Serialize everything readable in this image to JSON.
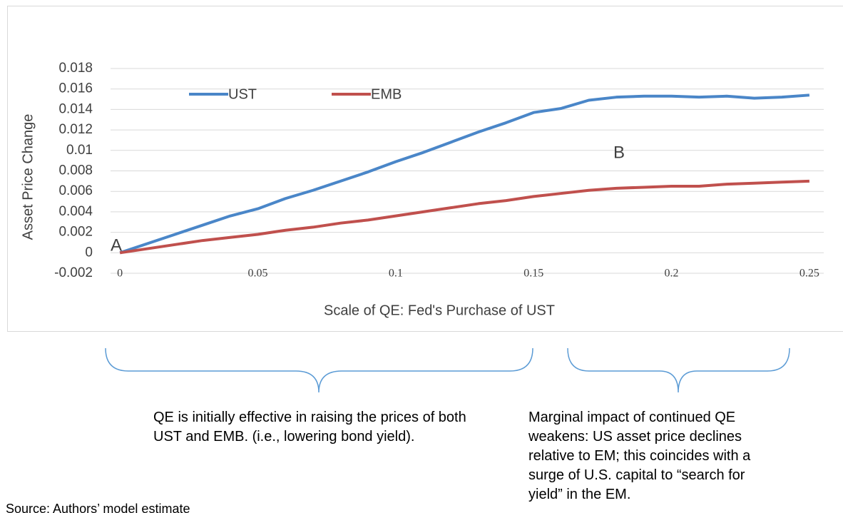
{
  "chart_data": {
    "type": "line",
    "y_label": "Asset Price Change",
    "x_label": "Scale of QE: Fed's Purchase of UST",
    "x": [
      0,
      0.01,
      0.02,
      0.03,
      0.04,
      0.05,
      0.06,
      0.07,
      0.08,
      0.09,
      0.1,
      0.11,
      0.12,
      0.13,
      0.14,
      0.15,
      0.16,
      0.17,
      0.18,
      0.19,
      0.2,
      0.21,
      0.22,
      0.23,
      0.24,
      0.25
    ],
    "series": [
      {
        "name": "UST",
        "color": "#4a86c8",
        "values": [
          0,
          0.0009,
          0.0018,
          0.0027,
          0.0036,
          0.0043,
          0.0053,
          0.0061,
          0.007,
          0.0079,
          0.0089,
          0.0098,
          0.0108,
          0.0118,
          0.0127,
          0.0137,
          0.0141,
          0.0149,
          0.0152,
          0.0153,
          0.0153,
          0.0152,
          0.0153,
          0.0151,
          0.0152,
          0.0154
        ]
      },
      {
        "name": "EMB",
        "color": "#c0504d",
        "values": [
          0,
          0.0004,
          0.0008,
          0.0012,
          0.0015,
          0.0018,
          0.0022,
          0.0025,
          0.0029,
          0.0032,
          0.0036,
          0.004,
          0.0044,
          0.0048,
          0.0051,
          0.0055,
          0.0058,
          0.0061,
          0.0063,
          0.0064,
          0.0065,
          0.0065,
          0.0067,
          0.0068,
          0.0069,
          0.007
        ]
      }
    ],
    "xlim": [
      -0.0034,
      0.2552
    ],
    "xticks": [
      0,
      0.05,
      0.1,
      0.15,
      0.2,
      0.25
    ],
    "ylim": [
      -0.002,
      0.018
    ],
    "yticks": [
      -0.002,
      0,
      0.002,
      0.004,
      0.006,
      0.008,
      0.01,
      0.012,
      0.014,
      0.016,
      0.018
    ],
    "grid": true,
    "legend": "top-left",
    "annotations": [
      "A",
      "B",
      "QE is initially effective in raising the prices of both UST and EMB. (i.e., lowering bond yield).",
      "Marginal impact of continued QE weakens: US asset price declines relative to EM; this coincides with a surge of U.S. capital to “search for yield” in the EM.",
      "Source: Authors’ model estimate"
    ]
  }
}
